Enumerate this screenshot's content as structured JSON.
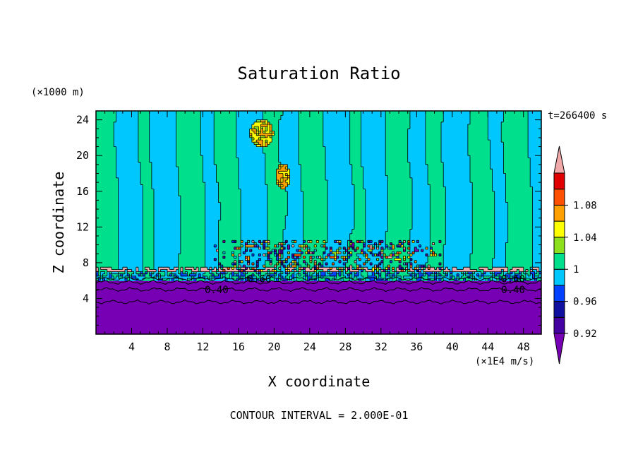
{
  "chart_data": {
    "type": "heatmap",
    "title": "Saturation Ratio",
    "xlabel": "X coordinate",
    "ylabel": "Z coordinate",
    "x_unit": "(×1E4 m/s)",
    "y_unit": "(×1000 m)",
    "time_label": "t=266400 s",
    "footer": "CONTOUR INTERVAL = 2.000E-01",
    "xlim": [
      0,
      50
    ],
    "ylim": [
      0,
      25
    ],
    "x_ticks": [
      "4",
      "8",
      "12",
      "16",
      "20",
      "24",
      "28",
      "32",
      "36",
      "40",
      "44",
      "48"
    ],
    "y_ticks": [
      "4",
      "8",
      "12",
      "16",
      "20",
      "24"
    ],
    "contour_labels": [
      {
        "text": "0.60",
        "x": 17,
        "z": 6.2
      },
      {
        "text": "0.40",
        "x": 12.2,
        "z": 5.0
      },
      {
        "text": "0.60",
        "x": 45.5,
        "z": 6.2
      },
      {
        "text": "0.40",
        "x": 45.5,
        "z": 5.0
      }
    ],
    "colorbar": {
      "levels": [
        0.92,
        0.94,
        0.96,
        0.98,
        1.0,
        1.02,
        1.04,
        1.06,
        1.08,
        1.1
      ],
      "colors": [
        "#4400a0",
        "#1010a0",
        "#0040ff",
        "#00c8ff",
        "#00e08c",
        "#8ce01e",
        "#ffff00",
        "#ffa000",
        "#ff5000",
        "#e00000"
      ],
      "under_color": "#7800b4",
      "over_color": "#f0a8a8",
      "tick_labels": [
        {
          "value": 0.92,
          "label": "0.92"
        },
        {
          "value": 0.96,
          "label": "0.96"
        },
        {
          "value": 1.0,
          "label": "1"
        },
        {
          "value": 1.04,
          "label": "1.04"
        },
        {
          "value": 1.08,
          "label": "1.08"
        }
      ]
    }
  }
}
